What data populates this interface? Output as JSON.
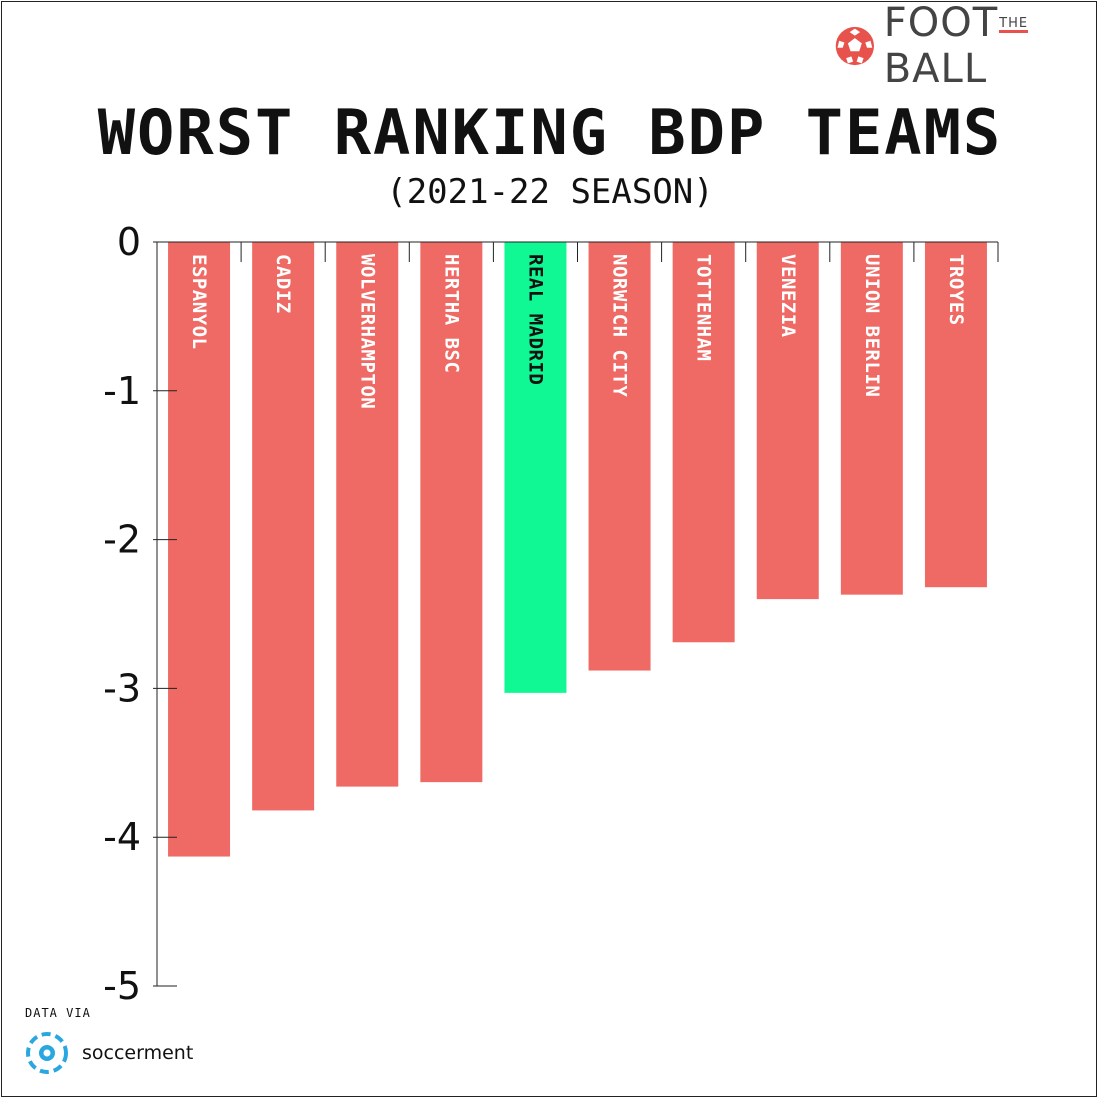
{
  "brand": {
    "name_foot": "FOOT",
    "name_the": "THE",
    "name_ball": "BALL",
    "icon": "football-icon"
  },
  "credit": {
    "label": "DATA VIA",
    "source": "soccerment",
    "icon": "soccerment-logo-icon"
  },
  "colors": {
    "bar": "#ef6a64",
    "highlight": "#0ff894",
    "axis": "#222222",
    "accent": "#e8524d"
  },
  "chart_data": {
    "type": "bar",
    "title": "WORST RANKING BDP TEAMS",
    "subtitle": "(2021-22 SEASON)",
    "categories": [
      "ESPANYOL",
      "CADIZ",
      "WOLVERHAMPTON",
      "HERTHA BSC",
      "REAL MADRID",
      "NORWICH CITY",
      "TOTTENHAM",
      "VENEZIA",
      "UNION BERLIN",
      "TROYES"
    ],
    "values": [
      -4.13,
      -3.82,
      -3.66,
      -3.63,
      -3.03,
      -2.88,
      -2.69,
      -2.4,
      -2.37,
      -2.32
    ],
    "highlight": "REAL MADRID",
    "ylim": [
      -5,
      0
    ],
    "yticks": [
      "0",
      "-1",
      "-2",
      "-3",
      "-4",
      "-5"
    ],
    "grid": false,
    "legend": "none",
    "xlabel": "",
    "ylabel": ""
  }
}
